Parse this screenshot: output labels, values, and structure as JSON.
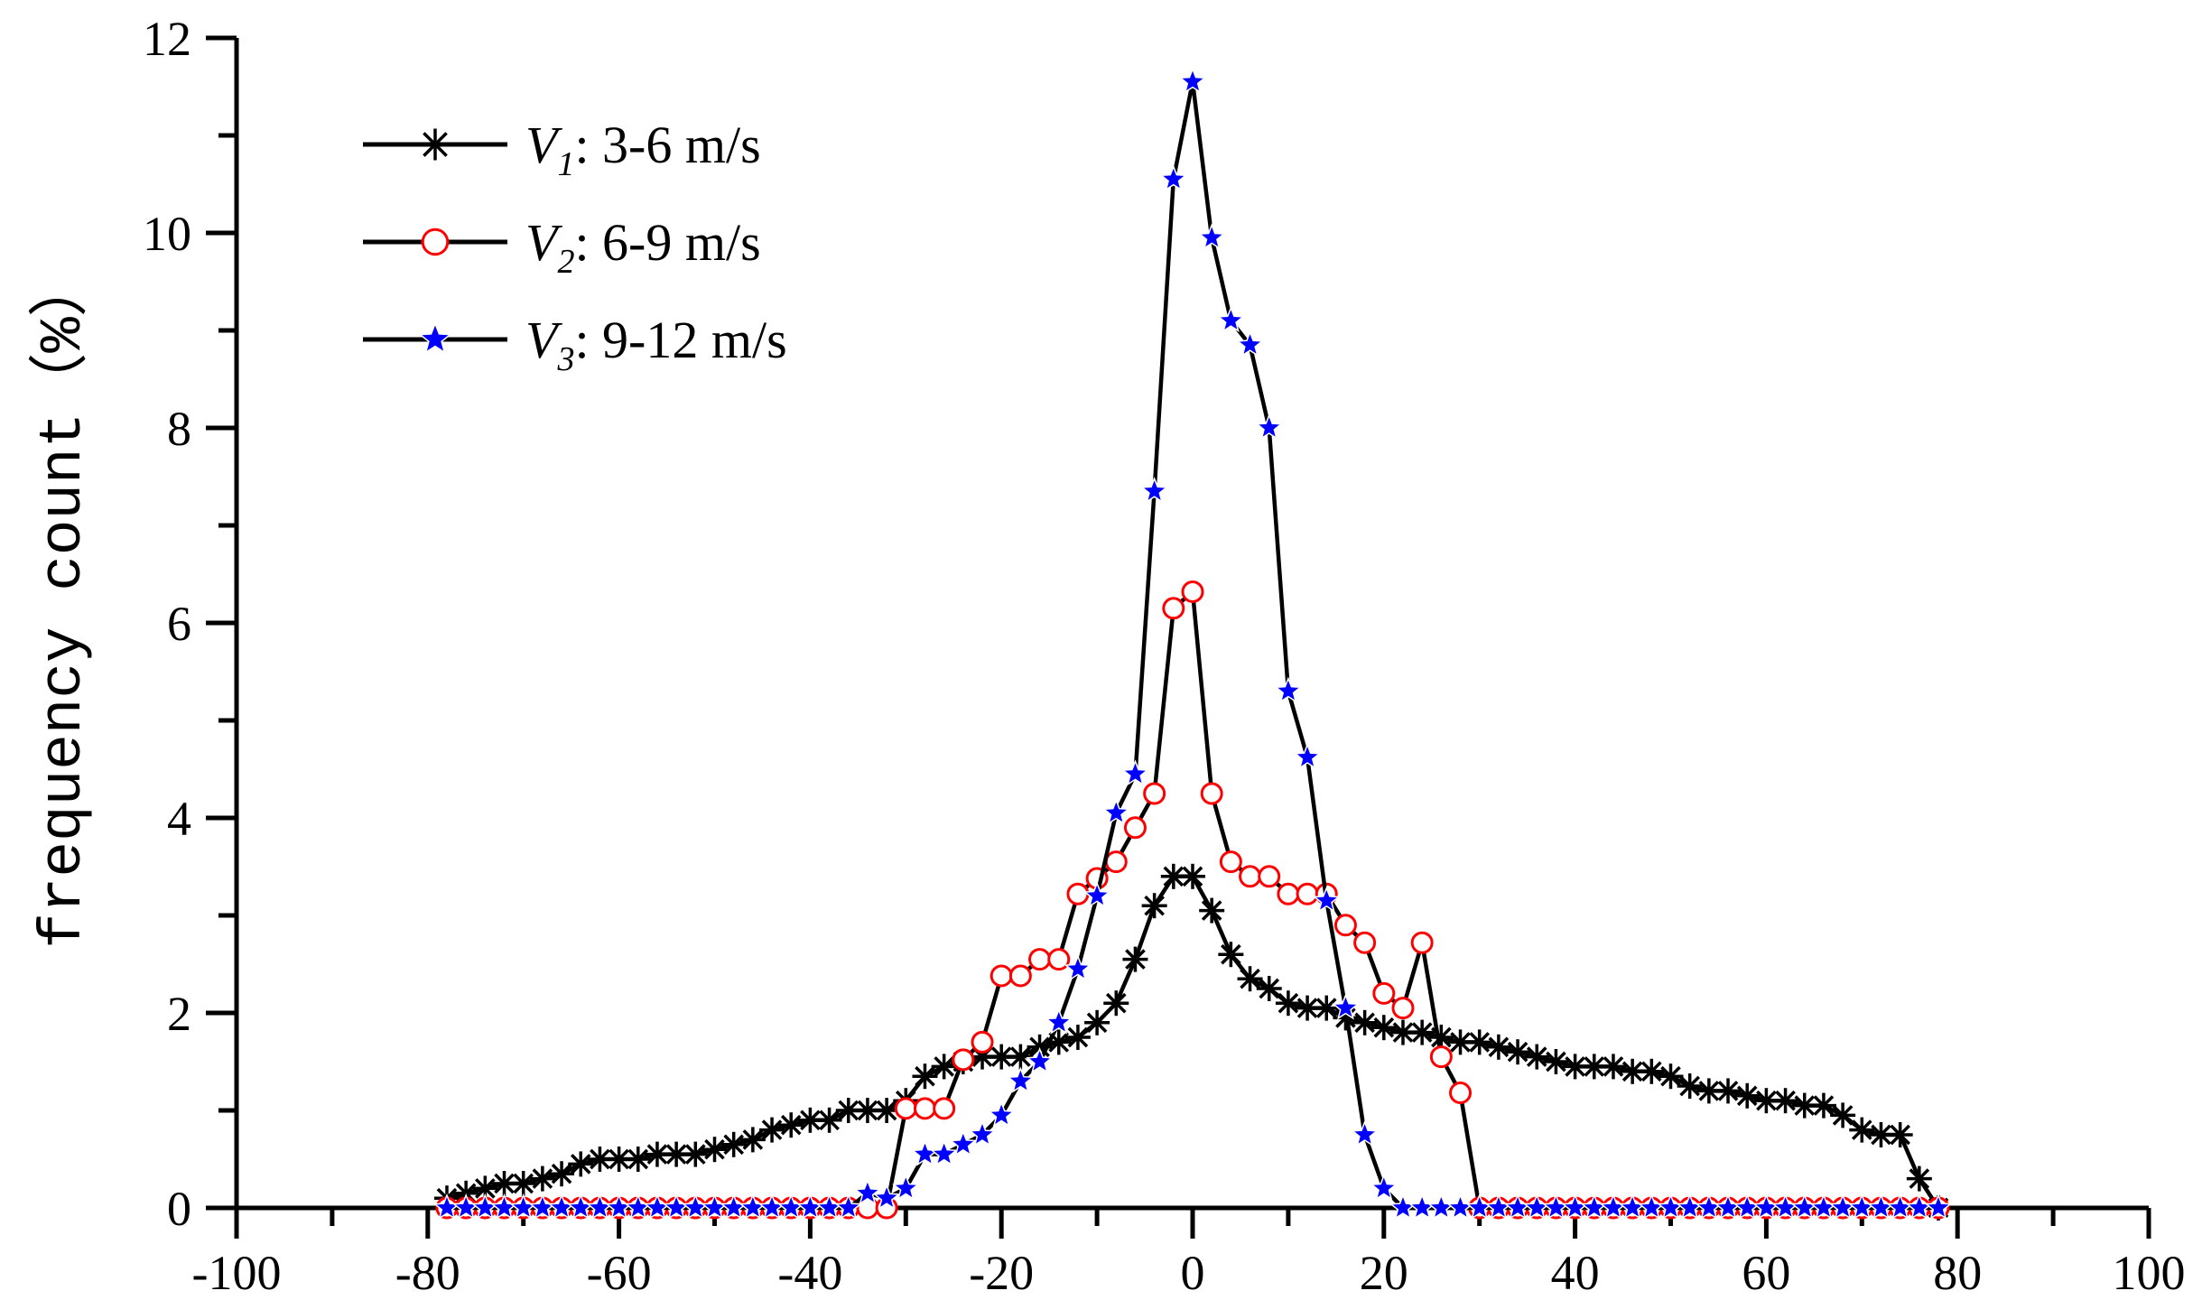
{
  "chart_data": {
    "type": "line",
    "title": "",
    "xlabel": "",
    "ylabel": "frequency count（%）",
    "xlim": [
      -100,
      100
    ],
    "ylim": [
      0,
      12
    ],
    "x_ticks": [
      "-100",
      "-80",
      "-60",
      "-40",
      "-20",
      "0",
      "20",
      "40",
      "60",
      "80",
      "100"
    ],
    "y_ticks": [
      "0",
      "2",
      "4",
      "6",
      "8",
      "10",
      "12"
    ],
    "legend_position": "top-left",
    "series": [
      {
        "name": "V1: 3-6 m/s",
        "label_main": "V",
        "label_sub": "1",
        "label_rest": ": 3-6 m/s",
        "marker": "asterisk",
        "line_color": "#000000",
        "marker_color": "#000000",
        "x": [
          -78,
          -76,
          -74,
          -72,
          -70,
          -68,
          -66,
          -64,
          -62,
          -60,
          -58,
          -56,
          -54,
          -52,
          -50,
          -48,
          -46,
          -44,
          -42,
          -40,
          -38,
          -36,
          -34,
          -32,
          -30,
          -28,
          -26,
          -24,
          -22,
          -20,
          -18,
          -16,
          -14,
          -12,
          -10,
          -8,
          -6,
          -4,
          -2,
          0,
          2,
          4,
          6,
          8,
          10,
          12,
          14,
          16,
          18,
          20,
          22,
          24,
          26,
          28,
          30,
          32,
          34,
          36,
          38,
          40,
          42,
          44,
          46,
          48,
          50,
          52,
          54,
          56,
          58,
          60,
          62,
          64,
          66,
          68,
          70,
          72,
          74,
          76,
          78
        ],
        "y": [
          0.1,
          0.15,
          0.2,
          0.25,
          0.25,
          0.3,
          0.35,
          0.45,
          0.5,
          0.5,
          0.5,
          0.55,
          0.55,
          0.55,
          0.6,
          0.65,
          0.7,
          0.8,
          0.85,
          0.9,
          0.9,
          1.0,
          1.0,
          1.0,
          1.1,
          1.35,
          1.45,
          1.5,
          1.55,
          1.55,
          1.55,
          1.65,
          1.7,
          1.75,
          1.9,
          2.1,
          2.55,
          3.1,
          3.4,
          3.4,
          3.05,
          2.6,
          2.35,
          2.25,
          2.1,
          2.05,
          2.05,
          1.95,
          1.9,
          1.85,
          1.8,
          1.8,
          1.75,
          1.7,
          1.7,
          1.65,
          1.6,
          1.55,
          1.5,
          1.45,
          1.45,
          1.45,
          1.4,
          1.4,
          1.35,
          1.25,
          1.2,
          1.2,
          1.15,
          1.1,
          1.1,
          1.05,
          1.05,
          0.95,
          0.8,
          0.75,
          0.75,
          0.3,
          0.0
        ]
      },
      {
        "name": "V2: 6-9 m/s",
        "label_main": "V",
        "label_sub": "2",
        "label_rest": ": 6-9 m/s",
        "marker": "circle",
        "line_color": "#000000",
        "marker_color": "#ff0000",
        "x": [
          -78,
          -76,
          -74,
          -72,
          -70,
          -68,
          -66,
          -64,
          -62,
          -60,
          -58,
          -56,
          -54,
          -52,
          -50,
          -48,
          -46,
          -44,
          -42,
          -40,
          -38,
          -36,
          -34,
          -32,
          -30,
          -28,
          -26,
          -24,
          -22,
          -20,
          -18,
          -16,
          -14,
          -12,
          -10,
          -8,
          -6,
          -4,
          -2,
          0,
          2,
          4,
          6,
          8,
          10,
          12,
          14,
          16,
          18,
          20,
          22,
          24,
          26,
          28,
          30,
          32,
          34,
          36,
          38,
          40,
          42,
          44,
          46,
          48,
          50,
          52,
          54,
          56,
          58,
          60,
          62,
          64,
          66,
          68,
          70,
          72,
          74,
          76,
          78
        ],
        "y": [
          0,
          0,
          0,
          0,
          0,
          0,
          0,
          0,
          0,
          0,
          0,
          0,
          0,
          0,
          0,
          0,
          0,
          0,
          0,
          0,
          0,
          0,
          0,
          0,
          1.02,
          1.02,
          1.02,
          1.52,
          1.7,
          2.38,
          2.38,
          2.55,
          2.55,
          3.22,
          3.38,
          3.55,
          3.9,
          4.25,
          6.15,
          6.32,
          4.25,
          3.55,
          3.4,
          3.4,
          3.22,
          3.22,
          3.22,
          2.9,
          2.72,
          2.2,
          2.05,
          2.72,
          1.55,
          1.18,
          0,
          0,
          0,
          0,
          0,
          0,
          0,
          0,
          0,
          0,
          0,
          0,
          0,
          0,
          0,
          0,
          0,
          0,
          0,
          0,
          0,
          0,
          0,
          0,
          0
        ]
      },
      {
        "name": "V3: 9-12 m/s",
        "label_main": "V",
        "label_sub": "3",
        "label_rest": ": 9-12 m/s",
        "marker": "star",
        "line_color": "#000000",
        "marker_color": "#0000ff",
        "x": [
          -78,
          -76,
          -74,
          -72,
          -70,
          -68,
          -66,
          -64,
          -62,
          -60,
          -58,
          -56,
          -54,
          -52,
          -50,
          -48,
          -46,
          -44,
          -42,
          -40,
          -38,
          -36,
          -34,
          -32,
          -30,
          -28,
          -26,
          -24,
          -22,
          -20,
          -18,
          -16,
          -14,
          -12,
          -10,
          -8,
          -6,
          -4,
          -2,
          0,
          2,
          4,
          6,
          8,
          10,
          12,
          14,
          16,
          18,
          20,
          22,
          24,
          26,
          28,
          30,
          32,
          34,
          36,
          38,
          40,
          42,
          44,
          46,
          48,
          50,
          52,
          54,
          56,
          58,
          60,
          62,
          64,
          66,
          68,
          70,
          72,
          74,
          76,
          78
        ],
        "y": [
          0,
          0,
          0,
          0,
          0,
          0,
          0,
          0,
          0,
          0,
          0,
          0,
          0,
          0,
          0,
          0,
          0,
          0,
          0,
          0,
          0,
          0,
          0.15,
          0.1,
          0.2,
          0.55,
          0.55,
          0.65,
          0.75,
          0.95,
          1.3,
          1.5,
          1.9,
          2.45,
          3.2,
          4.05,
          4.45,
          7.35,
          10.55,
          11.55,
          9.95,
          9.1,
          8.85,
          8.0,
          5.3,
          4.62,
          3.15,
          2.05,
          0.75,
          0.2,
          0,
          0,
          0,
          0,
          0,
          0,
          0,
          0,
          0,
          0,
          0,
          0,
          0,
          0,
          0,
          0,
          0,
          0,
          0,
          0,
          0,
          0,
          0,
          0,
          0,
          0,
          0,
          0,
          0
        ]
      }
    ]
  }
}
